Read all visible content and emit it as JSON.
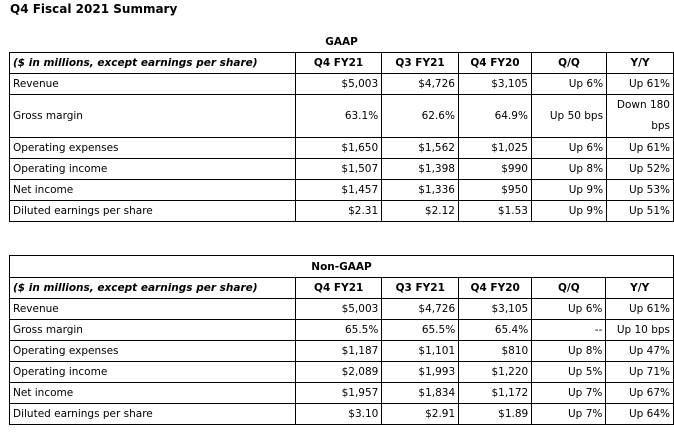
{
  "title": "Q4 Fiscal 2021 Summary",
  "gaap": {
    "caption": "GAAP",
    "header": [
      "($ in millions, except earnings per share)",
      "Q4 FY21",
      "Q3 FY21",
      "Q4 FY20",
      "Q/Q",
      "Y/Y"
    ],
    "rows": [
      [
        "Revenue",
        "$5,003",
        "$4,726",
        "$3,105",
        "Up 6%",
        "Up 61%"
      ],
      [
        "Gross margin",
        "63.1%",
        "62.6%",
        "64.9%",
        "Up 50 bps",
        "Down 180 bps"
      ],
      [
        "Operating expenses",
        "$1,650",
        "$1,562",
        "$1,025",
        "Up 6%",
        "Up 61%"
      ],
      [
        "Operating income",
        "$1,507",
        "$1,398",
        "$990",
        "Up 8%",
        "Up 52%"
      ],
      [
        "Net income",
        "$1,457",
        "$1,336",
        "$950",
        "Up 9%",
        "Up 53%"
      ],
      [
        "Diluted earnings per share",
        "$2.31",
        "$2.12",
        "$1.53",
        "Up 9%",
        "Up 51%"
      ]
    ]
  },
  "nongaap": {
    "caption": "Non-GAAP",
    "header": [
      "($ in millions, except earnings per share)",
      "Q4 FY21",
      "Q3 FY21",
      "Q4 FY20",
      "Q/Q",
      "Y/Y"
    ],
    "rows": [
      [
        "Revenue",
        "$5,003",
        "$4,726",
        "$3,105",
        "Up 6%",
        "Up 61%"
      ],
      [
        "Gross margin",
        "65.5%",
        "65.5%",
        "65.4%",
        "--",
        "Up 10 bps"
      ],
      [
        "Operating expenses",
        "$1,187",
        "$1,101",
        "$810",
        "Up 8%",
        "Up 47%"
      ],
      [
        "Operating income",
        "$2,089",
        "$1,993",
        "$1,220",
        "Up 5%",
        "Up 71%"
      ],
      [
        "Net income",
        "$1,957",
        "$1,834",
        "$1,172",
        "Up 7%",
        "Up 67%"
      ],
      [
        "Diluted earnings per share",
        "$3.10",
        "$2.91",
        "$1.89",
        "Up 7%",
        "Up 64%"
      ]
    ]
  }
}
